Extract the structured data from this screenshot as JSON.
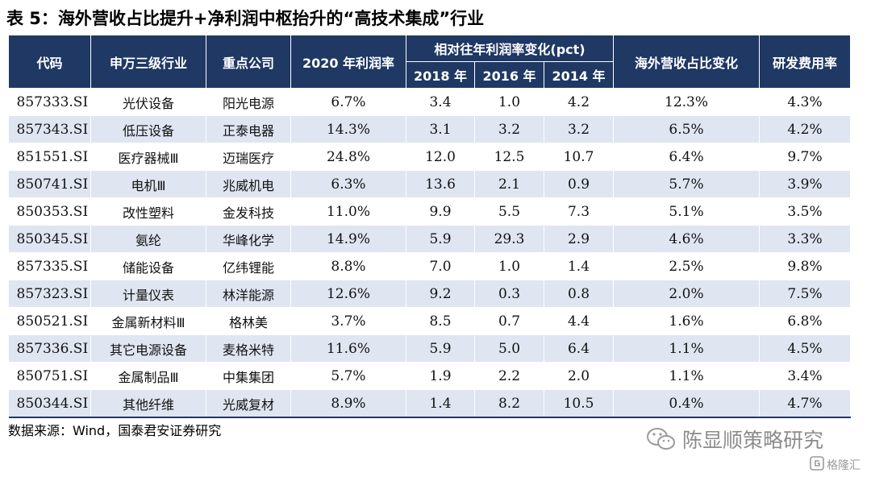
{
  "title": "表 5：海外营收占比提升+净利润中枢抬升的“高技术集成”行业",
  "table": {
    "headers": {
      "code": "代码",
      "industry": "申万三级行业",
      "company": "重点公司",
      "margin2020": "2020 年利润率",
      "change_group": "相对往年利润率变化(pct)",
      "y2018": "2018 年",
      "y2016": "2016 年",
      "y2014": "2014 年",
      "overseas": "海外营收占比变化",
      "rd": "研发费用率"
    },
    "rows": [
      {
        "code": "857333.SI",
        "industry": "光伏设备",
        "company": "阳光电源",
        "margin2020": "6.7%",
        "y2018": "3.4",
        "y2016": "1.0",
        "y2014": "4.2",
        "overseas": "12.3%",
        "rd": "4.3%"
      },
      {
        "code": "857343.SI",
        "industry": "低压设备",
        "company": "正泰电器",
        "margin2020": "14.3%",
        "y2018": "3.1",
        "y2016": "3.2",
        "y2014": "3.2",
        "overseas": "6.5%",
        "rd": "4.2%"
      },
      {
        "code": "851551.SI",
        "industry": "医疗器械Ⅲ",
        "company": "迈瑞医疗",
        "margin2020": "24.8%",
        "y2018": "12.0",
        "y2016": "12.5",
        "y2014": "10.7",
        "overseas": "6.4%",
        "rd": "9.7%"
      },
      {
        "code": "850741.SI",
        "industry": "电机Ⅲ",
        "company": "兆威机电",
        "margin2020": "6.3%",
        "y2018": "13.6",
        "y2016": "2.1",
        "y2014": "0.9",
        "overseas": "5.7%",
        "rd": "3.9%"
      },
      {
        "code": "850353.SI",
        "industry": "改性塑料",
        "company": "金发科技",
        "margin2020": "11.0%",
        "y2018": "9.9",
        "y2016": "5.5",
        "y2014": "7.3",
        "overseas": "5.1%",
        "rd": "3.5%"
      },
      {
        "code": "850345.SI",
        "industry": "氨纶",
        "company": "华峰化学",
        "margin2020": "14.9%",
        "y2018": "5.9",
        "y2016": "29.3",
        "y2014": "2.9",
        "overseas": "4.6%",
        "rd": "3.3%"
      },
      {
        "code": "857335.SI",
        "industry": "储能设备",
        "company": "亿纬锂能",
        "margin2020": "8.8%",
        "y2018": "7.0",
        "y2016": "1.0",
        "y2014": "1.4",
        "overseas": "2.5%",
        "rd": "9.8%"
      },
      {
        "code": "857323.SI",
        "industry": "计量仪表",
        "company": "林洋能源",
        "margin2020": "12.6%",
        "y2018": "9.2",
        "y2016": "0.3",
        "y2014": "0.8",
        "overseas": "2.0%",
        "rd": "7.5%"
      },
      {
        "code": "850521.SI",
        "industry": "金属新材料Ⅲ",
        "company": "格林美",
        "margin2020": "3.7%",
        "y2018": "8.5",
        "y2016": "0.7",
        "y2014": "4.4",
        "overseas": "1.6%",
        "rd": "6.8%"
      },
      {
        "code": "857336.SI",
        "industry": "其它电源设备",
        "company": "麦格米特",
        "margin2020": "11.6%",
        "y2018": "5.9",
        "y2016": "5.0",
        "y2014": "6.4",
        "overseas": "1.1%",
        "rd": "4.5%"
      },
      {
        "code": "850751.SI",
        "industry": "金属制品Ⅲ",
        "company": "中集集团",
        "margin2020": "5.7%",
        "y2018": "1.9",
        "y2016": "2.2",
        "y2014": "2.0",
        "overseas": "1.1%",
        "rd": "3.4%"
      },
      {
        "code": "850344.SI",
        "industry": "其他纤维",
        "company": "光威复材",
        "margin2020": "8.9%",
        "y2018": "1.4",
        "y2016": "8.2",
        "y2014": "10.5",
        "overseas": "0.4%",
        "rd": "4.7%"
      }
    ]
  },
  "source": "数据来源：Wind，国泰君安证券研究",
  "watermark": {
    "icon": "wechat-icon",
    "text": "陈显顺策略研究"
  },
  "watermark2": {
    "icon": "gelonghui-logo-icon",
    "text": "格隆汇"
  },
  "colors": {
    "header_bg": "#1f3864",
    "stripe": "#dfe5f1"
  }
}
